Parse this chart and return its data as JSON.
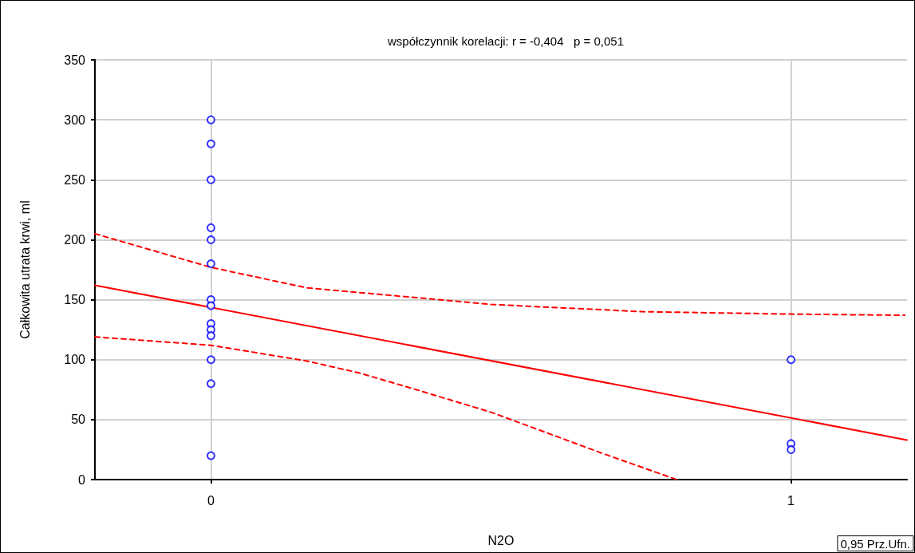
{
  "chart_data": {
    "type": "scatter",
    "title": "współczynnik korelacji: r = -0,404   p = 0,051",
    "xlabel": "N2O",
    "ylabel": "Całkowita utrata krwi, ml",
    "annotations": [
      "0,95 Prz.Ufn."
    ],
    "xlim": [
      -0.2,
      1.2
    ],
    "xticks": [
      0,
      1
    ],
    "ylim": [
      0,
      350
    ],
    "yticks": [
      0,
      50,
      100,
      150,
      200,
      250,
      300,
      350
    ],
    "grid": true,
    "series": [
      {
        "color": "#0000ff",
        "marker": "circle",
        "x": [
          0,
          0,
          0,
          0,
          0,
          0,
          0,
          0,
          0,
          0,
          0,
          0,
          0,
          0,
          1,
          1,
          1
        ],
        "values": [
          300,
          280,
          250,
          210,
          200,
          180,
          150,
          145,
          130,
          125,
          120,
          100,
          80,
          20,
          100,
          30,
          25
        ]
      },
      {
        "type": "line",
        "color": "#ff0000",
        "line_style": "solid",
        "marker": "none",
        "x": [
          -0.2,
          1.2
        ],
        "values": [
          162,
          33
        ]
      },
      {
        "type": "line",
        "color": "#ff0000",
        "line_style": "dashed",
        "marker": "none",
        "x": [
          -0.2,
          0,
          0.164,
          0.347,
          0.484,
          0.745,
          1,
          1.196
        ],
        "values": [
          205,
          177,
          160,
          152,
          146,
          140,
          138,
          137
        ]
      },
      {
        "type": "line",
        "color": "#ff0000",
        "line_style": "dashed",
        "marker": "none",
        "x": [
          -0.2,
          0,
          0.164,
          0.255,
          0.347,
          0.484,
          0.674,
          0.803
        ],
        "values": [
          119,
          112,
          99,
          89,
          76,
          56,
          22,
          0
        ]
      }
    ]
  }
}
